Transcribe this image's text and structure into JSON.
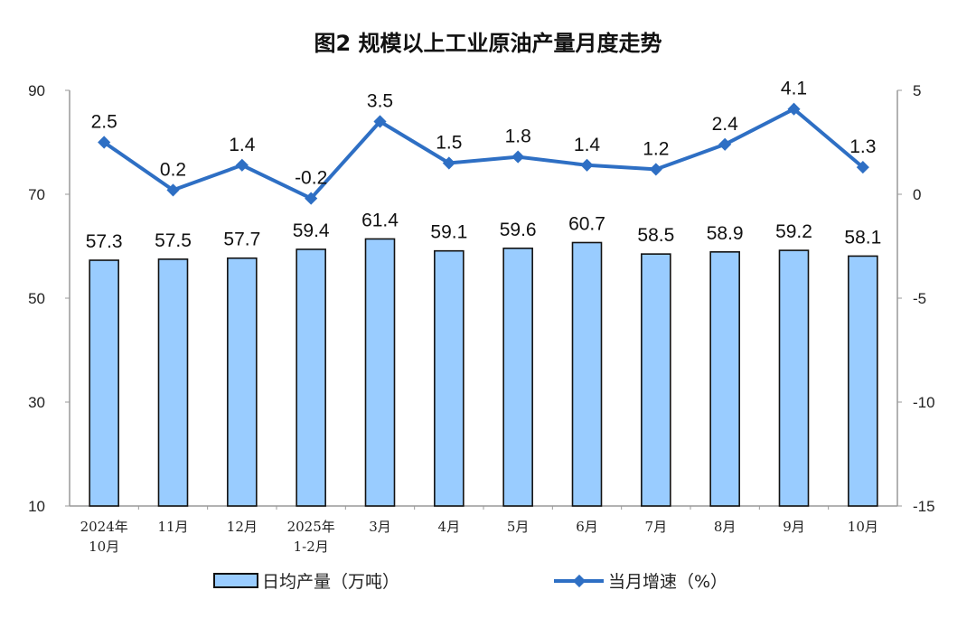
{
  "chart_data": {
    "type": "bar+line",
    "title": "图2  规模以上工业原油产量月度走势",
    "categories": [
      [
        "2024年",
        "10月"
      ],
      [
        "11月"
      ],
      [
        "12月"
      ],
      [
        "2025年",
        "1-2月"
      ],
      [
        "3月"
      ],
      [
        "4月"
      ],
      [
        "5月"
      ],
      [
        "6月"
      ],
      [
        "7月"
      ],
      [
        "8月"
      ],
      [
        "9月"
      ],
      [
        "10月"
      ]
    ],
    "series": [
      {
        "name": "日均产量（万吨）",
        "type": "bar",
        "axis": "left",
        "color": "#99CCFF",
        "values": [
          57.3,
          57.5,
          57.7,
          59.4,
          61.4,
          59.1,
          59.6,
          60.7,
          58.5,
          58.9,
          59.2,
          58.1
        ]
      },
      {
        "name": "当月增速（%）",
        "type": "line",
        "axis": "right",
        "color": "#2E6FC4",
        "values": [
          2.5,
          0.2,
          1.4,
          -0.2,
          3.5,
          1.5,
          1.8,
          1.4,
          1.2,
          2.4,
          4.1,
          1.3
        ]
      }
    ],
    "left_axis": {
      "ylim": [
        10,
        90
      ],
      "ticks": [
        10,
        30,
        50,
        70,
        90
      ]
    },
    "right_axis": {
      "ylim": [
        -15,
        5
      ],
      "ticks": [
        -15,
        -10,
        -5,
        0,
        5
      ]
    },
    "legend": "bottom",
    "grid": false
  }
}
